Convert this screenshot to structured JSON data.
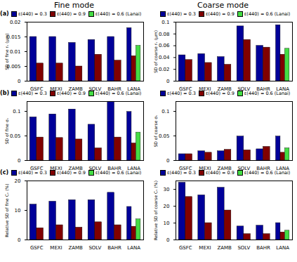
{
  "chart_data": [
    {
      "type": "bar",
      "title": "Fine mode",
      "annotations": [
        "(a)"
      ],
      "legend": "upper left",
      "categories": [
        "GSFC",
        "MEXI",
        "ZAMB",
        "SOLV",
        "BAHR",
        "LANA"
      ],
      "ylabel": "SD of fine rᵥ (μm)",
      "ylim": [
        0,
        0.02
      ],
      "yticks": [
        0,
        0.005,
        0.01,
        0.015,
        0.02
      ],
      "series": [
        {
          "name": "ε(440) = 0.3",
          "color": "#000099",
          "values": [
            0.015,
            0.015,
            0.013,
            0.014,
            0.015,
            0.018
          ]
        },
        {
          "name": "ε(440) = 0.9",
          "color": "#800000",
          "values": [
            0.006,
            0.006,
            0.005,
            0.009,
            0.007,
            0.0085
          ]
        },
        {
          "name": "ε(440) = 0.6 (Lanai)",
          "color": "#44dd44",
          "values": [
            null,
            null,
            null,
            null,
            null,
            0.012
          ]
        }
      ]
    },
    {
      "type": "bar",
      "title": "Coarse mode",
      "legend": "upper left",
      "categories": [
        "GSFC",
        "MEXI",
        "ZAMB",
        "SOLV",
        "BAHR",
        "LANA"
      ],
      "ylabel": "SD of coarse rᵥ (μm)",
      "ylim": [
        0,
        0.1
      ],
      "yticks": [
        0,
        0.02,
        0.04,
        0.06,
        0.08,
        0.1
      ],
      "series": [
        {
          "name": "ε(440) = 0.3",
          "color": "#000099",
          "values": [
            0.044,
            0.046,
            0.041,
            0.093,
            0.06,
            0.095
          ]
        },
        {
          "name": "ε(440) = 0.9",
          "color": "#800000",
          "values": [
            0.036,
            0.031,
            0.028,
            0.07,
            0.057,
            0.045
          ]
        },
        {
          "name": "ε(440) = 0.6 (Lanai)",
          "color": "#44dd44",
          "values": [
            null,
            null,
            null,
            null,
            null,
            0.055
          ]
        }
      ]
    },
    {
      "type": "bar",
      "annotations": [
        "(b)"
      ],
      "legend": "upper left",
      "categories": [
        "GSFC",
        "MEXI",
        "ZAMB",
        "SOLV",
        "BAHR",
        "LANA"
      ],
      "ylabel": "SD of fine σᵥ",
      "ylim": [
        0,
        0.12
      ],
      "yticks": [
        0,
        0.05,
        0.1
      ],
      "series": [
        {
          "name": "ε(440) = 0.3",
          "color": "#000099",
          "values": [
            0.088,
            0.094,
            0.104,
            0.073,
            0.12,
            0.099
          ]
        },
        {
          "name": "ε(440) = 0.9",
          "color": "#800000",
          "values": [
            0.047,
            0.046,
            0.043,
            0.025,
            0.047,
            0.035
          ]
        },
        {
          "name": "ε(440) = 0.6 (Lanai)",
          "color": "#44dd44",
          "values": [
            null,
            null,
            null,
            null,
            null,
            0.057
          ]
        }
      ]
    },
    {
      "type": "bar",
      "legend": "upper left",
      "categories": [
        "GSFC",
        "MEXI",
        "ZAMB",
        "SOLV",
        "BAHR",
        "LANA"
      ],
      "ylabel": "SD of coarse σᵥ",
      "ylim": [
        0,
        0.12
      ],
      "yticks": [
        0,
        0.05,
        0.1
      ],
      "series": [
        {
          "name": "ε(440) = 0.3",
          "color": "#000099",
          "values": [
            0.013,
            0.019,
            0.019,
            0.049,
            0.023,
            0.049
          ]
        },
        {
          "name": "ε(440) = 0.9",
          "color": "#800000",
          "values": [
            0.013,
            0.016,
            0.022,
            0.021,
            0.028,
            0.016
          ]
        },
        {
          "name": "ε(440) = 0.6 (Lanai)",
          "color": "#44dd44",
          "values": [
            null,
            null,
            null,
            null,
            null,
            0.025
          ]
        }
      ]
    },
    {
      "type": "bar",
      "annotations": [
        "(c)"
      ],
      "legend": "upper left",
      "categories": [
        "GSFC",
        "MEXI",
        "ZAMB",
        "SOLV",
        "BAHR",
        "LANA"
      ],
      "ylabel": "Relative SD of fine Cᵥ (%)",
      "ylim": [
        0,
        20
      ],
      "yticks": [
        0,
        10,
        20
      ],
      "series": [
        {
          "name": "ε(440) = 0.3",
          "color": "#000099",
          "values": [
            12,
            13,
            13.5,
            13.5,
            16,
            11.2
          ]
        },
        {
          "name": "ε(440) = 0.9",
          "color": "#800000",
          "values": [
            4,
            5,
            4.2,
            6,
            5,
            4.5
          ]
        },
        {
          "name": "ε(440) = 0.6 (Lanai)",
          "color": "#44dd44",
          "values": [
            null,
            null,
            null,
            null,
            null,
            7
          ]
        }
      ]
    },
    {
      "type": "bar",
      "legend": "upper left",
      "categories": [
        "GSFC",
        "MEXI",
        "ZAMB",
        "SOLV",
        "BAHR",
        "LANA"
      ],
      "ylabel": "Relative SD of coarse Cᵥ (%)",
      "ylim": [
        0,
        35
      ],
      "yticks": [
        0,
        10,
        20,
        30
      ],
      "series": [
        {
          "name": "ε(440) = 0.3",
          "color": "#000099",
          "values": [
            34,
            26.5,
            31,
            8,
            8.5,
            10
          ]
        },
        {
          "name": "ε(440) = 0.9",
          "color": "#800000",
          "values": [
            25.5,
            10,
            17.5,
            3.5,
            3.5,
            4.5
          ]
        },
        {
          "name": "ε(440) = 0.6 (Lanai)",
          "color": "#44dd44",
          "values": [
            null,
            null,
            null,
            null,
            null,
            5.5
          ]
        }
      ]
    }
  ]
}
